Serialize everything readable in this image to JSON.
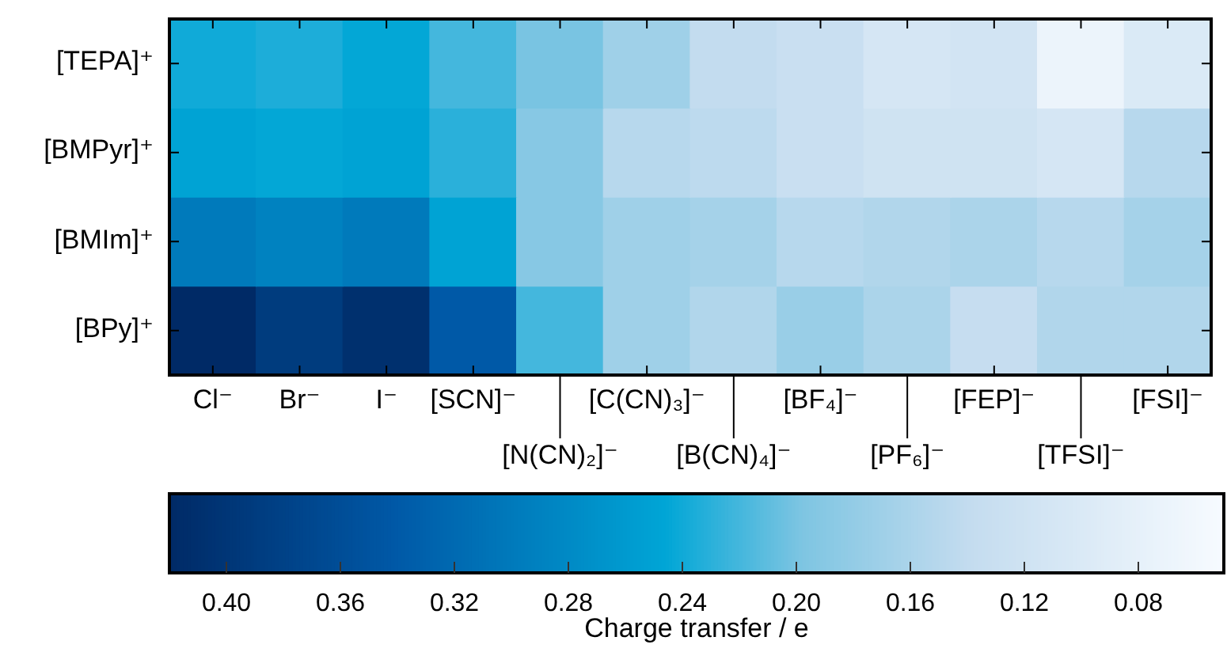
{
  "chart_data": {
    "type": "heatmap",
    "categories": [
      "Cl⁻",
      "Br⁻",
      "I⁻",
      "[SCN]⁻",
      "[N(CN)₂]⁻",
      "[C(CN)₃]⁻",
      "[B(CN)₄]⁻",
      "[BF₄]⁻",
      "[PF₆]⁻",
      "[FEP]⁻",
      "[TFSI]⁻",
      "[FSI]⁻"
    ],
    "y_categories": [
      "[TEPA]⁺",
      "[BMPyr]⁺",
      "[BMIm]⁺",
      "[BPy]⁺"
    ],
    "cells": [
      [
        0.24,
        0.235,
        0.245,
        0.22,
        0.2,
        0.17,
        0.14,
        0.13,
        0.11,
        0.115,
        0.07,
        0.1
      ],
      [
        0.25,
        0.245,
        0.25,
        0.23,
        0.19,
        0.15,
        0.145,
        0.13,
        0.12,
        0.12,
        0.11,
        0.15
      ],
      [
        0.3,
        0.29,
        0.3,
        0.25,
        0.19,
        0.17,
        0.165,
        0.15,
        0.155,
        0.16,
        0.15,
        0.165
      ],
      [
        0.42,
        0.39,
        0.41,
        0.34,
        0.22,
        0.17,
        0.155,
        0.175,
        0.16,
        0.135,
        0.155,
        0.155
      ]
    ],
    "clim": [
      0.42,
      0.05
    ],
    "cticks": [
      {
        "value": 0.4,
        "label": "0.40"
      },
      0.36,
      0.32,
      0.28,
      0.24,
      {
        "value": 0.2,
        "label": "0.20"
      },
      0.16,
      0.12,
      0.08
    ],
    "clabel": "Charge transfer / e"
  }
}
